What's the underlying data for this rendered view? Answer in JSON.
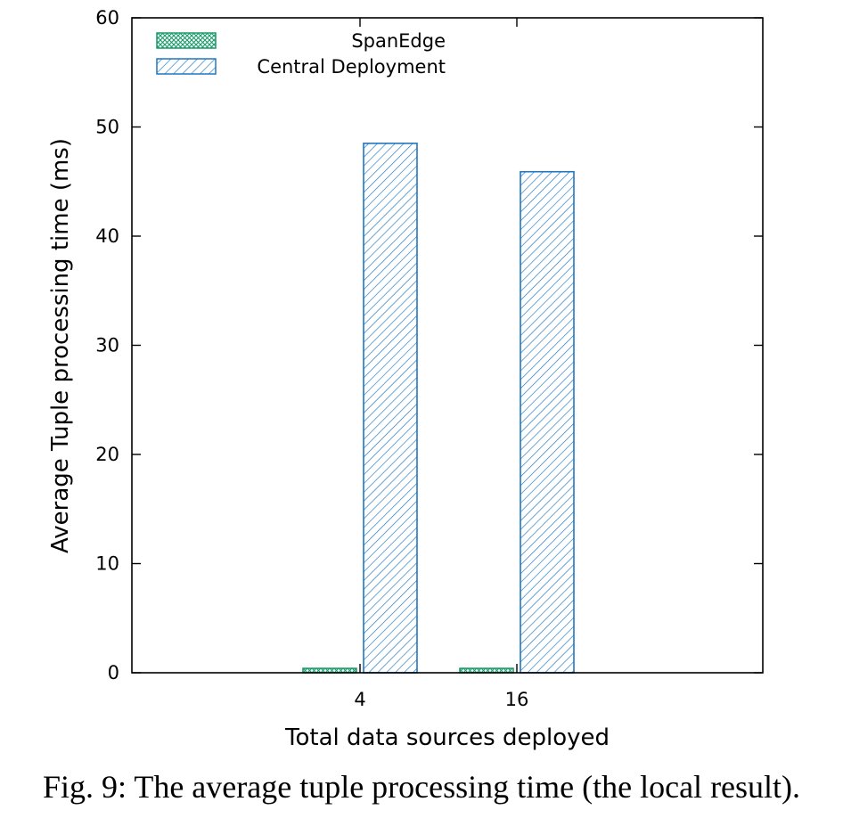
{
  "chart_data": {
    "type": "bar",
    "categories": [
      "4",
      "16"
    ],
    "series": [
      {
        "name": "SpanEdge",
        "values": [
          0.4,
          0.4
        ],
        "color": "#1a9a6a",
        "pattern": "crosshatch"
      },
      {
        "name": "Central Deployment",
        "values": [
          48.5,
          45.9
        ],
        "color": "#1f77c0",
        "pattern": "diagonal-hatch"
      }
    ],
    "xlabel": "Total data sources deployed",
    "ylabel": "Average Tuple processing time (ms)",
    "ylim": [
      0,
      60
    ],
    "yticks": [
      "0",
      "10",
      "20",
      "30",
      "40",
      "50",
      "60"
    ],
    "grid": false,
    "legend_position": "top-left"
  },
  "caption": "Fig. 9: The average tuple processing time (the local result)."
}
